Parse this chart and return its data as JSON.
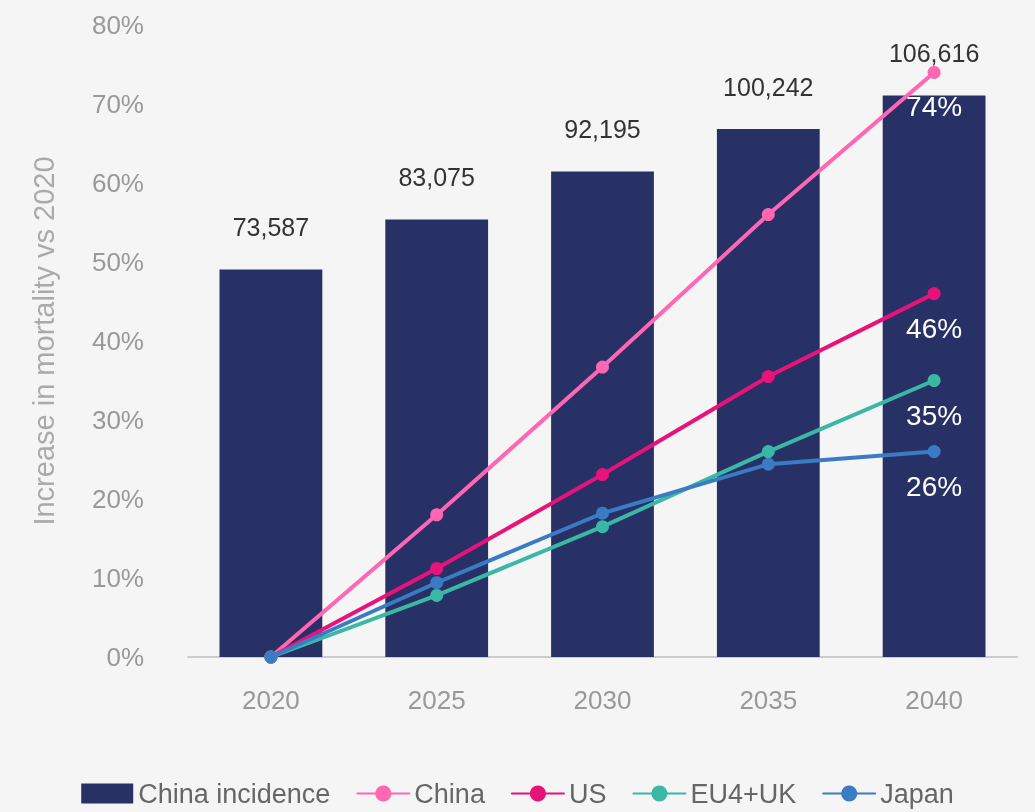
{
  "chart_data": {
    "type": "bar",
    "ylabel": "Increase in mortality vs 2020",
    "categories": [
      "2020",
      "2025",
      "2030",
      "2035",
      "2040"
    ],
    "series": [
      {
        "name": "China incidence",
        "axis": "y2",
        "color": "#283166",
        "values": [
          73587,
          83075,
          92195,
          100242,
          106616
        ],
        "value_labels": [
          "73,587",
          "83,075",
          "92,195",
          "100,242",
          "106,616"
        ]
      },
      {
        "name": "China",
        "type": "line",
        "color": "#ff66b3",
        "values": [
          0,
          18,
          36.7,
          56,
          74
        ],
        "value_labels": [
          null,
          null,
          null,
          null,
          "74%"
        ]
      },
      {
        "name": "US",
        "type": "line",
        "color": "#e8137a",
        "values": [
          0,
          11.2,
          23.1,
          35.5,
          46
        ],
        "value_labels": [
          null,
          null,
          null,
          null,
          "46%"
        ]
      },
      {
        "name": "EU4+UK",
        "type": "line",
        "color": "#3bb8a5",
        "values": [
          0,
          7.8,
          16.5,
          26,
          35
        ],
        "value_labels": [
          null,
          null,
          null,
          null,
          "35%"
        ]
      },
      {
        "name": "Japan",
        "type": "line",
        "color": "#3a7cc4",
        "values": [
          0,
          9.4,
          18.2,
          24.4,
          26
        ],
        "value_labels": [
          null,
          null,
          null,
          null,
          "26%"
        ]
      }
    ],
    "ylim": [
      0,
      80
    ],
    "yticks": [
      {
        "value": 0,
        "label": "0%"
      },
      {
        "value": 10,
        "label": "10%"
      },
      {
        "value": 20,
        "label": "20%"
      },
      {
        "value": 30,
        "label": "30%"
      },
      {
        "value": 40,
        "label": "40%"
      },
      {
        "value": 50,
        "label": "50%"
      },
      {
        "value": 60,
        "label": "60%"
      },
      {
        "value": 70,
        "label": "70%"
      },
      {
        "value": 80,
        "label": "80%"
      }
    ],
    "tick_labels": "xy",
    "legend": "bottom",
    "grid": false,
    "marker": "circle",
    "line_style": "solid"
  }
}
